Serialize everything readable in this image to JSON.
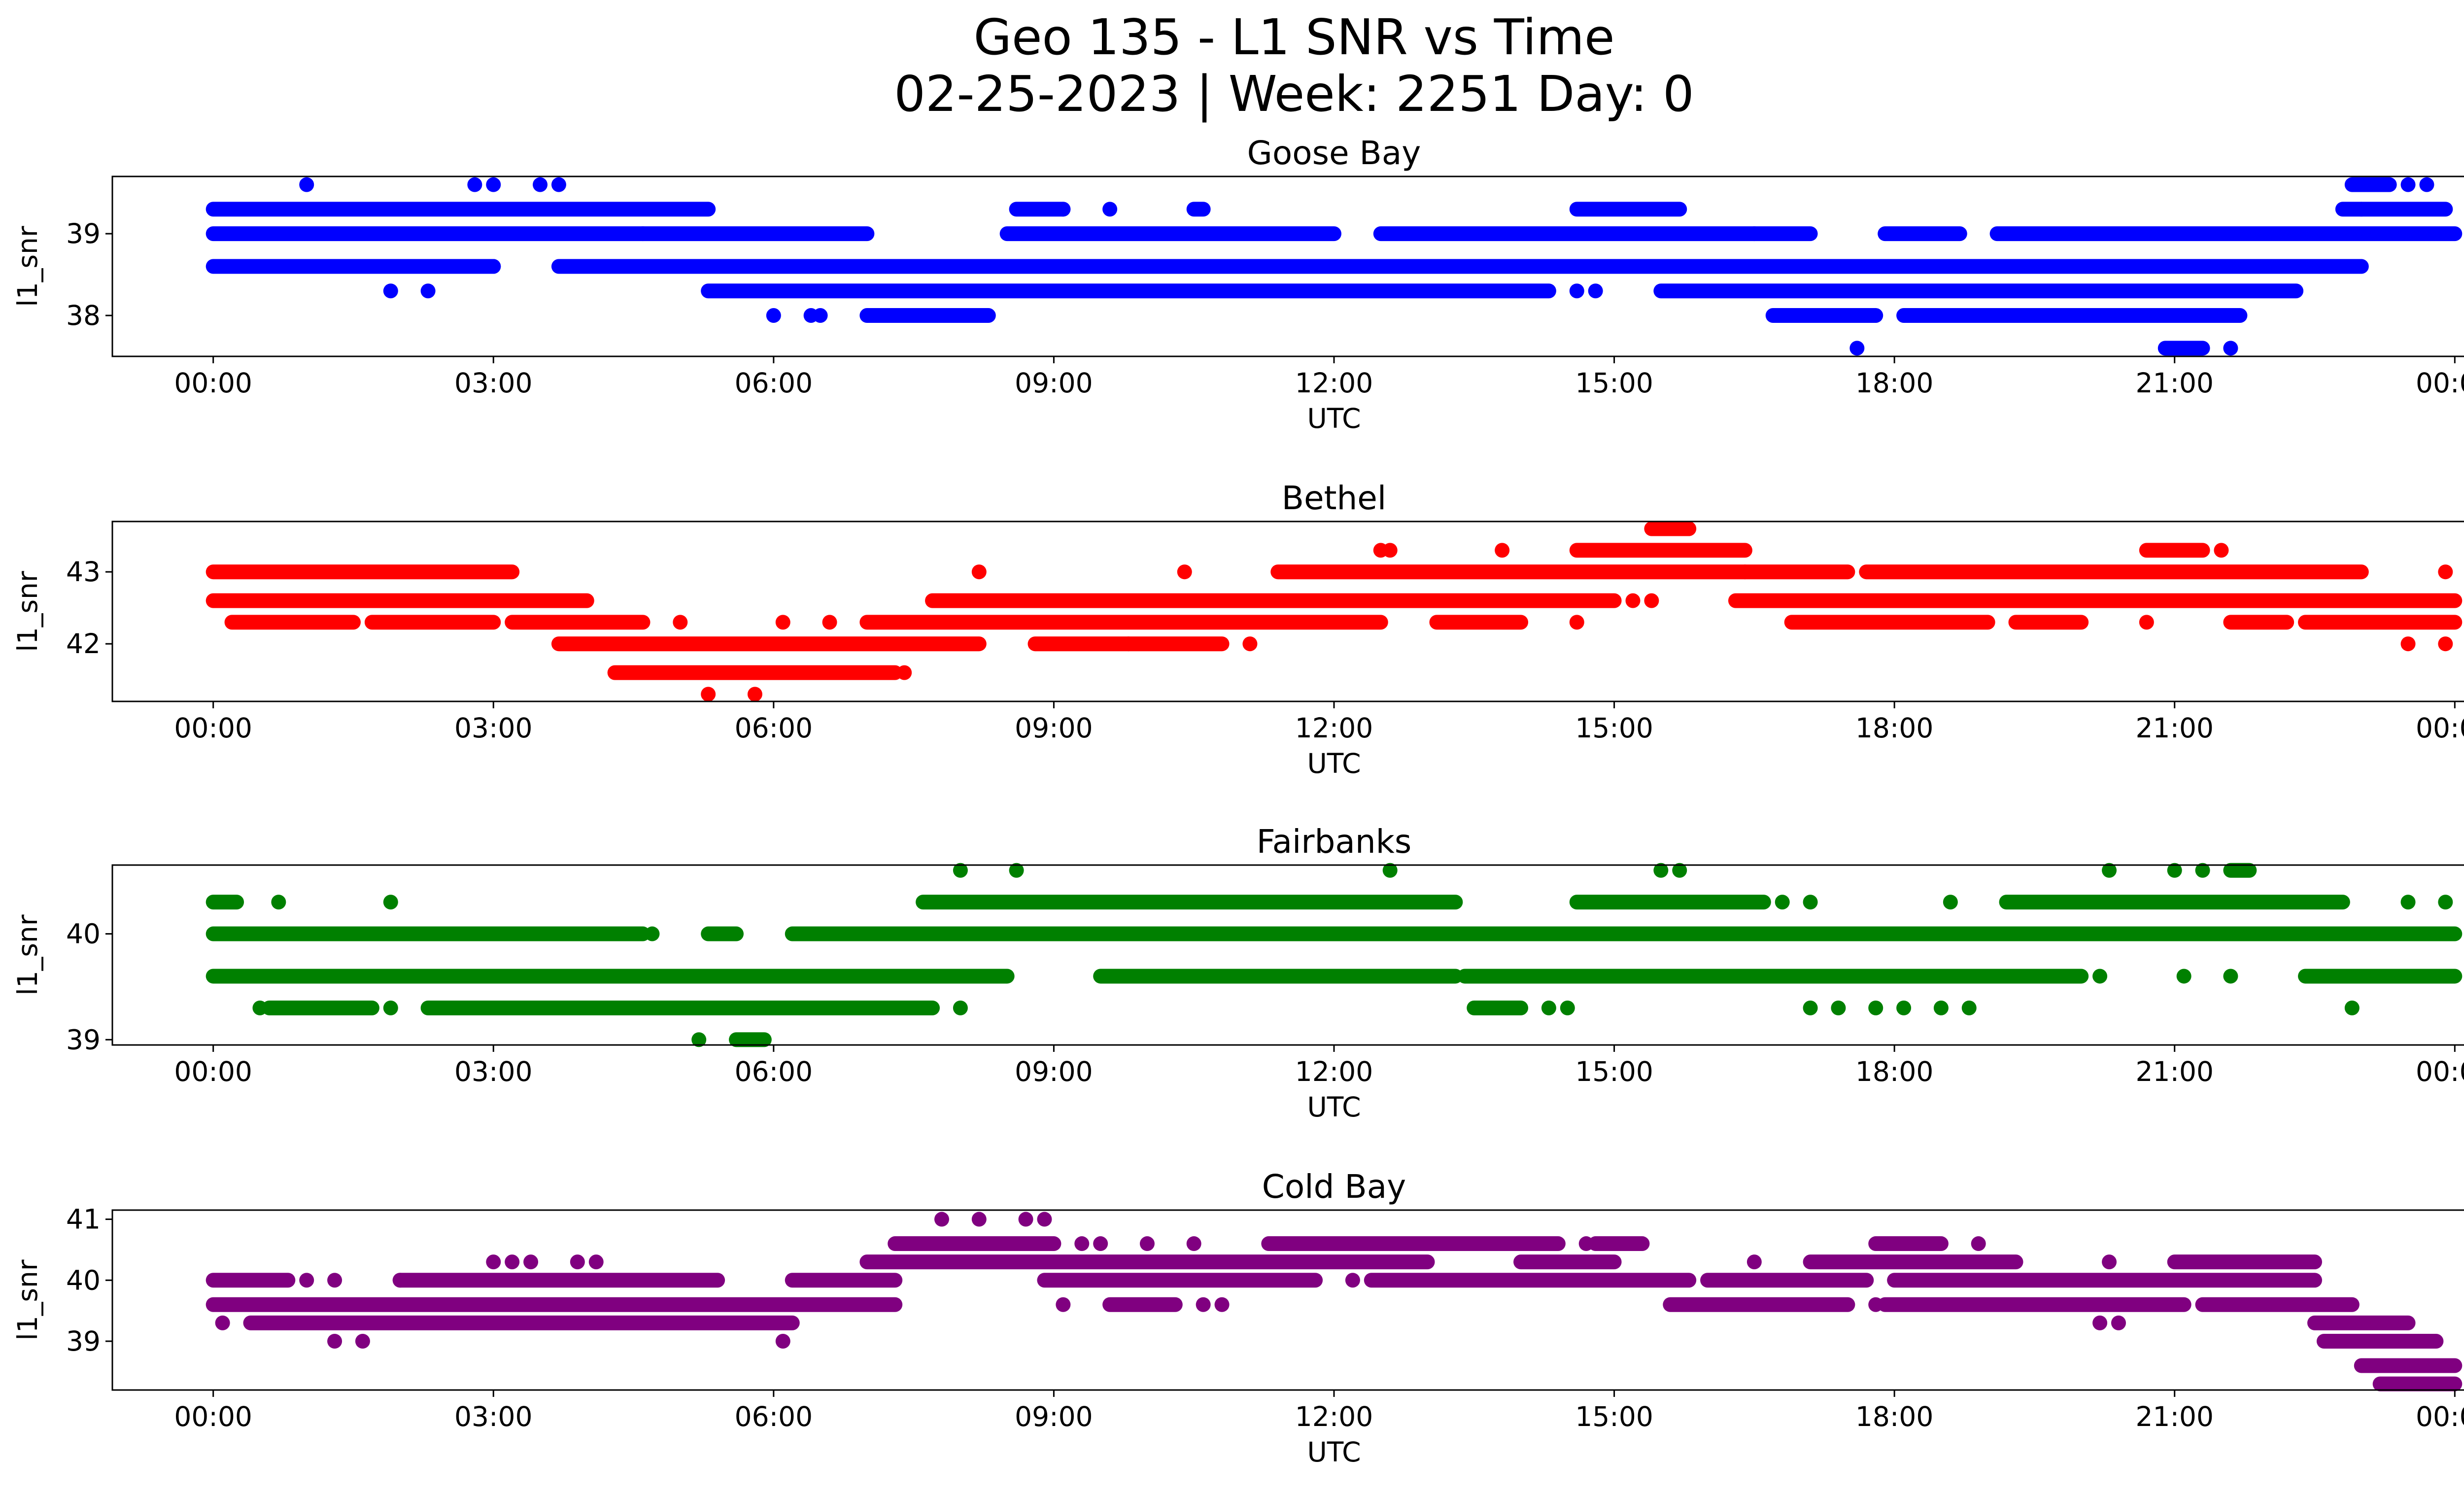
{
  "figure": {
    "title_line1": "Geo 135 - L1 SNR vs Time",
    "title_line2": "02-25-2023 | Week: 2251 Day: 0"
  },
  "chart_data": [
    {
      "type": "scatter",
      "title": "Goose Bay",
      "color": "#0000ff",
      "xlabel": "UTC",
      "ylabel": "l1_snr",
      "x_ticks": [
        "00:00",
        "03:00",
        "06:00",
        "09:00",
        "12:00",
        "15:00",
        "18:00",
        "21:00",
        "00:00"
      ],
      "y_ticks": [
        38,
        39
      ],
      "ylim": [
        37.5,
        39.7
      ],
      "levels": [
        {
          "y": 39.3,
          "segments": [
            [
              0.0,
              5.3
            ],
            [
              8.6,
              9.1
            ],
            [
              10.5,
              10.6
            ],
            [
              14.6,
              15.7
            ],
            [
              22.8,
              23.0
            ],
            [
              23.0,
              23.9
            ]
          ],
          "points": [
            9.1,
            9.6
          ]
        },
        {
          "y": 39.0,
          "segments": [
            [
              0.0,
              4.6
            ],
            [
              4.6,
              7.0
            ],
            [
              8.5,
              12.0
            ],
            [
              12.5,
              16.5
            ],
            [
              16.5,
              17.1
            ],
            [
              17.9,
              18.7
            ],
            [
              19.1,
              24.0
            ]
          ],
          "points": []
        },
        {
          "y": 38.6,
          "segments": [
            [
              0.0,
              3.0
            ],
            [
              3.7,
              23.0
            ]
          ],
          "points": [
            2.8,
            3.0
          ]
        },
        {
          "y": 38.3,
          "segments": [
            [
              5.3,
              14.3
            ],
            [
              15.5,
              22.3
            ]
          ],
          "points": [
            1.9,
            2.3,
            14.6,
            14.8
          ]
        },
        {
          "y": 38.0,
          "segments": [
            [
              7.0,
              8.3
            ],
            [
              16.7,
              17.8
            ],
            [
              18.1,
              21.7
            ]
          ],
          "points": [
            6.0,
            6.4,
            6.5
          ]
        },
        {
          "y": 39.6,
          "segments": [
            [
              22.9,
              23.3
            ]
          ],
          "points": [
            1.0,
            2.8,
            3.0,
            3.5,
            3.7,
            23.5,
            23.7
          ]
        },
        {
          "y": 37.6,
          "segments": [
            [
              20.9,
              21.3
            ]
          ],
          "points": [
            17.6,
            21.6
          ]
        }
      ]
    },
    {
      "type": "scatter",
      "title": "Bethel",
      "color": "#ff0000",
      "xlabel": "UTC",
      "ylabel": "l1_snr",
      "x_ticks": [
        "00:00",
        "03:00",
        "06:00",
        "09:00",
        "12:00",
        "15:00",
        "18:00",
        "21:00",
        "00:00"
      ],
      "y_ticks": [
        42,
        43
      ],
      "ylim": [
        41.2,
        43.7
      ],
      "levels": [
        {
          "y": 43.0,
          "segments": [
            [
              0.0,
              3.2
            ],
            [
              11.4,
              16.4
            ],
            [
              16.4,
              17.5
            ],
            [
              17.7,
              23.0
            ]
          ],
          "points": [
            8.2,
            10.4,
            23.9
          ]
        },
        {
          "y": 42.6,
          "segments": [
            [
              0.0,
              4.0
            ],
            [
              7.7,
              15.0
            ],
            [
              16.3,
              24.0
            ]
          ],
          "points": [
            15.2,
            15.4
          ]
        },
        {
          "y": 42.3,
          "segments": [
            [
              0.2,
              1.5
            ],
            [
              1.7,
              3.0
            ],
            [
              3.2,
              4.6
            ],
            [
              7.0,
              12.5
            ],
            [
              13.1,
              14.0
            ],
            [
              16.9,
              19.0
            ],
            [
              19.3,
              20.0
            ],
            [
              21.6,
              22.2
            ],
            [
              22.4,
              24.0
            ]
          ],
          "points": [
            5.0,
            6.1,
            6.6,
            14.6,
            20.7
          ]
        },
        {
          "y": 42.0,
          "segments": [
            [
              3.7,
              8.2
            ],
            [
              8.8,
              9.8
            ],
            [
              9.8,
              10.8
            ]
          ],
          "points": [
            11.1,
            23.5,
            23.9
          ]
        },
        {
          "y": 41.6,
          "segments": [
            [
              4.3,
              7.3
            ]
          ],
          "points": [
            7.4
          ]
        },
        {
          "y": 41.3,
          "segments": [],
          "points": [
            5.3,
            5.8
          ]
        },
        {
          "y": 43.3,
          "segments": [
            [
              14.6,
              16.4
            ],
            [
              20.7,
              21.3
            ]
          ],
          "points": [
            12.5,
            12.6,
            13.8,
            21.5
          ]
        },
        {
          "y": 43.6,
          "segments": [
            [
              15.4,
              15.8
            ]
          ],
          "points": []
        }
      ]
    },
    {
      "type": "scatter",
      "title": "Fairbanks",
      "color": "#008000",
      "xlabel": "UTC",
      "ylabel": "l1_snr",
      "x_ticks": [
        "00:00",
        "03:00",
        "06:00",
        "09:00",
        "12:00",
        "15:00",
        "18:00",
        "21:00",
        "00:00"
      ],
      "y_ticks": [
        39,
        40
      ],
      "ylim": [
        38.95,
        40.65
      ],
      "levels": [
        {
          "y": 40.3,
          "segments": [
            [
              0.0,
              0.25
            ],
            [
              7.6,
              13.3
            ],
            [
              14.6,
              16.6
            ],
            [
              19.2,
              22.8
            ]
          ],
          "points": [
            0.7,
            1.9,
            16.8,
            17.1,
            18.6,
            23.5,
            23.9
          ]
        },
        {
          "y": 40.0,
          "segments": [
            [
              0.0,
              4.6
            ],
            [
              5.3,
              5.6
            ],
            [
              6.2,
              24.0
            ]
          ],
          "points": [
            4.7
          ]
        },
        {
          "y": 39.6,
          "segments": [
            [
              0.0,
              8.5
            ],
            [
              9.5,
              13.3
            ],
            [
              13.4,
              20.0
            ],
            [
              22.4,
              24.0
            ]
          ],
          "points": [
            20.2,
            21.1,
            21.6
          ]
        },
        {
          "y": 39.3,
          "segments": [
            [
              0.6,
              1.7
            ],
            [
              2.3,
              7.7
            ],
            [
              13.5,
              14.0
            ]
          ],
          "points": [
            0.5,
            1.9,
            8.0,
            14.3,
            14.5,
            17.1,
            17.4,
            17.8,
            18.1,
            18.5,
            18.8,
            22.9
          ]
        },
        {
          "y": 39.0,
          "segments": [
            [
              5.6,
              5.9
            ]
          ],
          "points": [
            5.2
          ]
        },
        {
          "y": 40.6,
          "segments": [
            [
              21.6,
              21.8
            ]
          ],
          "points": [
            8.0,
            8.6,
            12.6,
            15.5,
            15.7,
            20.3,
            21.0,
            21.3
          ]
        }
      ]
    },
    {
      "type": "scatter",
      "title": "Cold Bay",
      "color": "#800080",
      "xlabel": "UTC",
      "ylabel": "l1_snr",
      "x_ticks": [
        "00:00",
        "03:00",
        "06:00",
        "09:00",
        "12:00",
        "15:00",
        "18:00",
        "21:00",
        "00:00"
      ],
      "y_ticks": [
        39,
        40,
        41
      ],
      "ylim": [
        38.2,
        41.15
      ],
      "levels": [
        {
          "y": 40.0,
          "segments": [
            [
              0.0,
              0.8
            ],
            [
              2.0,
              5.4
            ],
            [
              6.2,
              7.3
            ],
            [
              8.9,
              11.8
            ],
            [
              12.4,
              15.8
            ],
            [
              16.0,
              17.7
            ],
            [
              18.0,
              22.5
            ]
          ],
          "points": [
            1.0,
            1.3,
            2.0,
            12.2
          ]
        },
        {
          "y": 39.6,
          "segments": [
            [
              0.0,
              7.3
            ],
            [
              9.6,
              10.3
            ],
            [
              15.6,
              17.5
            ],
            [
              17.9,
              21.1
            ],
            [
              21.3,
              22.9
            ]
          ],
          "points": [
            9.1,
            10.6,
            10.8,
            17.8
          ]
        },
        {
          "y": 39.3,
          "segments": [
            [
              0.4,
              6.2
            ],
            [
              22.5,
              23.5
            ]
          ],
          "points": [
            0.1,
            20.2,
            20.4
          ]
        },
        {
          "y": 40.3,
          "segments": [
            [
              7.0,
              13.0
            ],
            [
              14.0,
              15.0
            ],
            [
              17.1,
              19.3
            ],
            [
              21.0,
              22.5
            ]
          ],
          "points": [
            3.0,
            3.2,
            3.4,
            3.9,
            4.1,
            16.5,
            20.3
          ]
        },
        {
          "y": 40.6,
          "segments": [
            [
              7.3,
              9.0
            ],
            [
              11.3,
              14.4
            ],
            [
              14.8,
              15.3
            ],
            [
              17.8,
              18.5
            ]
          ],
          "points": [
            9.3,
            9.5,
            10.0,
            10.5,
            14.7,
            18.9
          ]
        },
        {
          "y": 39.0,
          "segments": [
            [
              22.6,
              23.8
            ]
          ],
          "points": [
            1.3,
            1.6,
            6.1
          ]
        },
        {
          "y": 38.6,
          "segments": [
            [
              23.0,
              24.0
            ]
          ],
          "points": []
        },
        {
          "y": 38.3,
          "segments": [
            [
              23.2,
              24.0
            ]
          ],
          "points": []
        },
        {
          "y": 41.0,
          "segments": [],
          "points": [
            7.8,
            8.2,
            8.7,
            8.9
          ]
        }
      ]
    }
  ]
}
